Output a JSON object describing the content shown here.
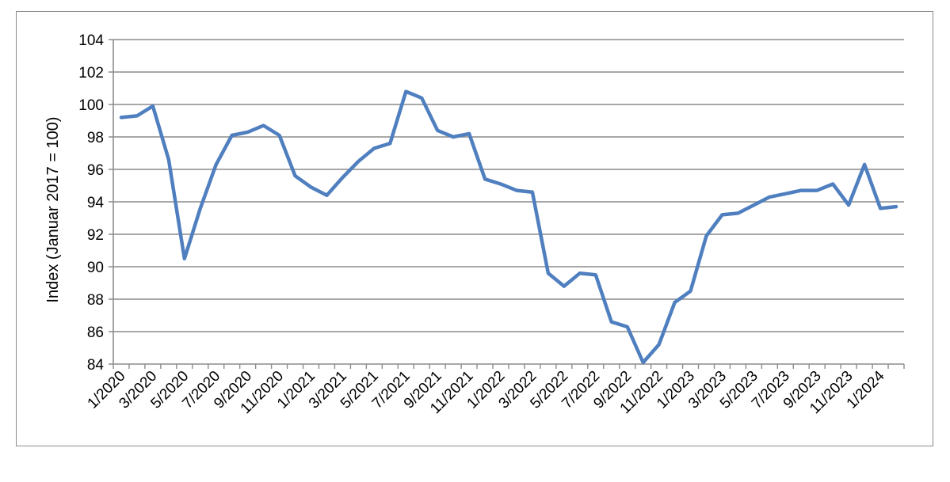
{
  "chart_data": {
    "type": "line",
    "ylabel": "Index (Januar 2017 = 100)",
    "ylim": [
      84,
      104
    ],
    "y_ticks": [
      84,
      86,
      88,
      90,
      92,
      94,
      96,
      98,
      100,
      102,
      104
    ],
    "x_tick_labels": [
      "1/2020",
      "3/2020",
      "5/2020",
      "7/2020",
      "9/2020",
      "11/2020",
      "1/2021",
      "3/2021",
      "5/2021",
      "7/2021",
      "9/2021",
      "11/2021",
      "1/2022",
      "3/2022",
      "5/2022",
      "7/2022",
      "9/2022",
      "11/2022",
      "1/2023",
      "3/2023",
      "5/2023",
      "7/2023",
      "9/2023",
      "11/2023",
      "1/2024"
    ],
    "grid": true,
    "legend": "none",
    "colors": {
      "line": "#4f7fbf",
      "grid": "#8c8c8c",
      "axis": "#8c8c8c"
    },
    "series": [
      {
        "x": [
          "1/2020",
          "2/2020",
          "3/2020",
          "4/2020",
          "5/2020",
          "6/2020",
          "7/2020",
          "8/2020",
          "9/2020",
          "10/2020",
          "11/2020",
          "12/2020",
          "1/2021",
          "2/2021",
          "3/2021",
          "4/2021",
          "5/2021",
          "6/2021",
          "7/2021",
          "8/2021",
          "9/2021",
          "10/2021",
          "11/2021",
          "12/2021",
          "1/2022",
          "2/2022",
          "3/2022",
          "4/2022",
          "5/2022",
          "6/2022",
          "7/2022",
          "8/2022",
          "9/2022",
          "10/2022",
          "11/2022",
          "12/2022",
          "1/2023",
          "2/2023",
          "3/2023",
          "4/2023",
          "5/2023",
          "6/2023",
          "7/2023",
          "8/2023",
          "9/2023",
          "10/2023",
          "11/2023",
          "12/2023",
          "1/2024",
          "2/2024"
        ],
        "values": [
          99.2,
          99.3,
          99.9,
          96.6,
          90.5,
          93.6,
          96.3,
          98.1,
          98.3,
          98.7,
          98.1,
          95.6,
          94.9,
          94.4,
          95.5,
          96.5,
          97.3,
          97.6,
          100.8,
          100.4,
          98.4,
          98.0,
          98.2,
          95.4,
          95.1,
          94.7,
          94.6,
          89.6,
          88.8,
          89.6,
          89.5,
          86.6,
          86.3,
          84.1,
          85.2,
          87.8,
          88.5,
          91.9,
          93.2,
          93.3,
          93.8,
          94.3,
          94.5,
          94.7,
          94.7,
          95.1,
          93.8,
          96.3,
          93.6,
          93.7
        ]
      }
    ]
  }
}
